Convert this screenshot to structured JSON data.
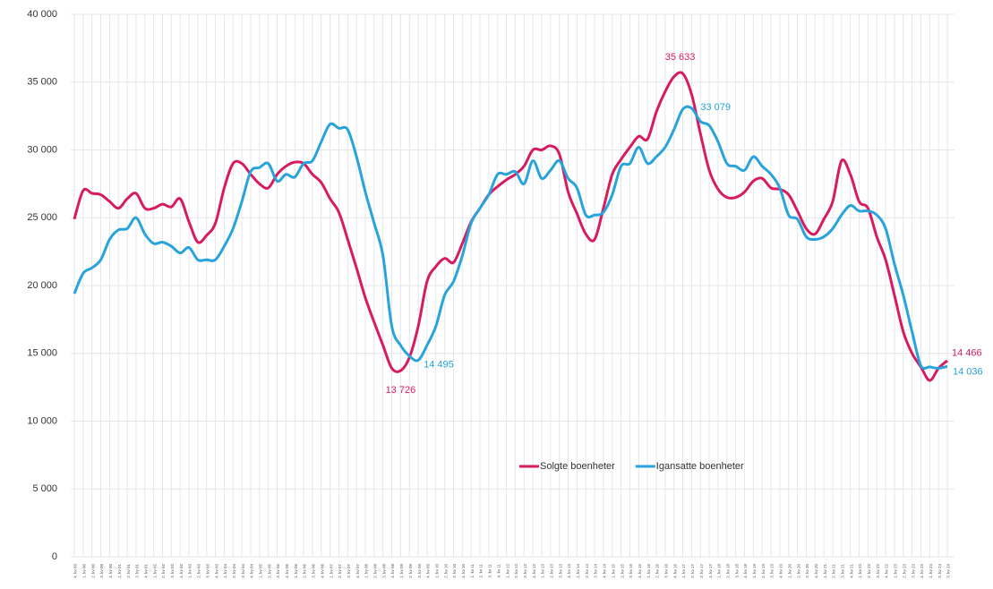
{
  "chart_data": {
    "type": "line",
    "categories": [
      "4. kv 99",
      "1. kv 00",
      "2. kv 00",
      "3. kv 00",
      "4. kv 00",
      "1. kv 01",
      "2. kv 01",
      "3. kv 01",
      "4. kv 01",
      "1. kv 02",
      "2. kv 02",
      "3. kv 02",
      "4. kv 02",
      "1. kv 03",
      "2. kv 03",
      "3. kv 03",
      "4. kv 03",
      "1. kv 04",
      "2. kv 04",
      "3. kv 04",
      "4. kv 04",
      "1. kv 05",
      "2. kv 05",
      "3. kv 05",
      "4. kv 05",
      "1. kv 06",
      "2. kv 06",
      "3. kv 06",
      "4. kv 06",
      "1. kv 07",
      "2. kv 07",
      "3. kv 07",
      "4. kv 07",
      "1. kv 08",
      "2. kv 08",
      "3. kv 08",
      "4. kv 08",
      "1. kv 09",
      "2. kv 09",
      "3. kv 09",
      "4. kv 09",
      "1. kv 10",
      "2. kv 10",
      "3. kv 10",
      "4. kv 10",
      "1. kv 11",
      "2. kv 11",
      "3. kv 11",
      "4. kv 11",
      "1. kv 12",
      "2. kv 12",
      "3. kv 12",
      "4. kv 12",
      "1. kv 13",
      "2. kv 13",
      "3. kv 13",
      "4. kv 13",
      "1. kv 14",
      "2. kv 14",
      "3. kv 14",
      "4. kv 14",
      "1. kv 15",
      "2. kv 15",
      "3. kv 15",
      "4. kv 15",
      "1. kv 16",
      "2. kv 16",
      "3. kv 16",
      "4. kv 16",
      "1. kv 17",
      "2. kv 17",
      "3. kv 17",
      "4. kv 17",
      "1. kv 18",
      "2. kv 18",
      "3. kv 18",
      "4. kv 18",
      "1. kv 19",
      "2. kv 19",
      "3. kv 19",
      "4. kv 19",
      "1. kv 20",
      "2. kv 20",
      "3. kv 20",
      "4. kv 20",
      "1. kv 21",
      "2. kv 21",
      "3. kv 21",
      "4. kv 21",
      "1. kv 22",
      "2. kv 22",
      "3. kv 22",
      "4. kv 22",
      "1. kv 23",
      "2. kv 23",
      "3. kv 23",
      "4. kv 23",
      "1. kv 24",
      "2. kv 24",
      "3. kv 24"
    ],
    "series": [
      {
        "name": "Solgte boenheter",
        "color": "#d81b60",
        "values": [
          24900,
          27000,
          26800,
          26700,
          26200,
          25700,
          26400,
          26800,
          25700,
          25700,
          26000,
          25800,
          26400,
          24700,
          23200,
          23700,
          24600,
          27200,
          29000,
          29000,
          28200,
          27500,
          27200,
          28200,
          28800,
          29100,
          29000,
          28200,
          27600,
          26400,
          25400,
          23400,
          21300,
          19100,
          17300,
          15600,
          13900,
          13726,
          14700,
          17000,
          20300,
          21400,
          22000,
          21700,
          23100,
          24700,
          25700,
          26700,
          27300,
          27800,
          28200,
          28800,
          30000,
          30000,
          30300,
          29700,
          26900,
          25300,
          23800,
          23400,
          25700,
          28200,
          29300,
          30200,
          31000,
          30800,
          32800,
          34300,
          35400,
          35633,
          34100,
          31200,
          28500,
          27100,
          26500,
          26500,
          26900,
          27700,
          27900,
          27200,
          27100,
          26700,
          25500,
          24200,
          23800,
          24900,
          26200,
          29200,
          28200,
          26200,
          25700,
          23600,
          21900,
          19300,
          16600,
          15000,
          14000,
          13000,
          13900,
          14466
        ],
        "value_labels": [
          null,
          null,
          null,
          null,
          null,
          null,
          null,
          null,
          null,
          null,
          null,
          null,
          null,
          null,
          null,
          null,
          null,
          null,
          null,
          null,
          null,
          null,
          null,
          null,
          null,
          null,
          null,
          null,
          null,
          null,
          null,
          null,
          null,
          null,
          null,
          null,
          null,
          "13 726",
          null,
          null,
          null,
          null,
          null,
          null,
          null,
          null,
          null,
          null,
          null,
          null,
          null,
          null,
          null,
          null,
          null,
          null,
          null,
          null,
          null,
          null,
          null,
          null,
          null,
          null,
          null,
          null,
          null,
          null,
          null,
          "35 633",
          null,
          null,
          null,
          null,
          null,
          null,
          null,
          null,
          null,
          null,
          null,
          null,
          null,
          null,
          null,
          null,
          null,
          null,
          null,
          null,
          null,
          null,
          null,
          null,
          null,
          null,
          null,
          null,
          null,
          "14 466"
        ]
      },
      {
        "name": "Igansatte boenheter",
        "color": "#29a3dc",
        "values": [
          19400,
          20900,
          21300,
          21900,
          23400,
          24100,
          24200,
          25000,
          23800,
          23100,
          23200,
          22900,
          22400,
          22800,
          21900,
          21900,
          21900,
          22900,
          24200,
          26200,
          28400,
          28700,
          29000,
          27700,
          28200,
          28000,
          29000,
          29200,
          30600,
          31900,
          31600,
          31500,
          29500,
          26900,
          24600,
          22200,
          17000,
          15600,
          14800,
          14495,
          15600,
          17000,
          19300,
          20300,
          22200,
          24600,
          25700,
          26700,
          28200,
          28200,
          28400,
          27500,
          29200,
          27900,
          28500,
          29200,
          27900,
          27200,
          25200,
          25200,
          25400,
          26700,
          28800,
          29000,
          30200,
          29000,
          29500,
          30200,
          31500,
          33000,
          33079,
          32100,
          31800,
          30600,
          29000,
          28800,
          28500,
          29500,
          28800,
          28200,
          27200,
          25200,
          24900,
          23600,
          23400,
          23600,
          24200,
          25200,
          25900,
          25500,
          25500,
          25200,
          24200,
          21600,
          19300,
          16600,
          14100,
          14000,
          13900,
          14036
        ],
        "value_labels": [
          null,
          null,
          null,
          null,
          null,
          null,
          null,
          null,
          null,
          null,
          null,
          null,
          null,
          null,
          null,
          null,
          null,
          null,
          null,
          null,
          null,
          null,
          null,
          null,
          null,
          null,
          null,
          null,
          null,
          null,
          null,
          null,
          null,
          null,
          null,
          null,
          null,
          null,
          null,
          "14 495",
          null,
          null,
          null,
          null,
          null,
          null,
          null,
          null,
          null,
          null,
          null,
          null,
          null,
          null,
          null,
          null,
          null,
          null,
          null,
          null,
          null,
          null,
          null,
          null,
          null,
          null,
          null,
          null,
          null,
          null,
          "33 079",
          null,
          null,
          null,
          null,
          null,
          null,
          null,
          null,
          null,
          null,
          null,
          null,
          null,
          null,
          null,
          null,
          null,
          null,
          null,
          null,
          null,
          null,
          null,
          null,
          null,
          null,
          null,
          null,
          "14 036"
        ]
      }
    ],
    "ylim": [
      0,
      40000
    ],
    "yticks": [
      0,
      {
        "value": 5000,
        "label": "5 000"
      },
      {
        "value": 10000,
        "label": "10 000"
      },
      {
        "value": 15000,
        "label": "15 000"
      },
      {
        "value": 20000,
        "label": "20 000"
      },
      {
        "value": 25000,
        "label": "25 000"
      },
      {
        "value": 30000,
        "label": "30 000"
      },
      {
        "value": 35000,
        "label": "35 000"
      },
      {
        "value": 40000,
        "label": "40 000"
      }
    ],
    "grid": true,
    "legend": "lower-center"
  }
}
